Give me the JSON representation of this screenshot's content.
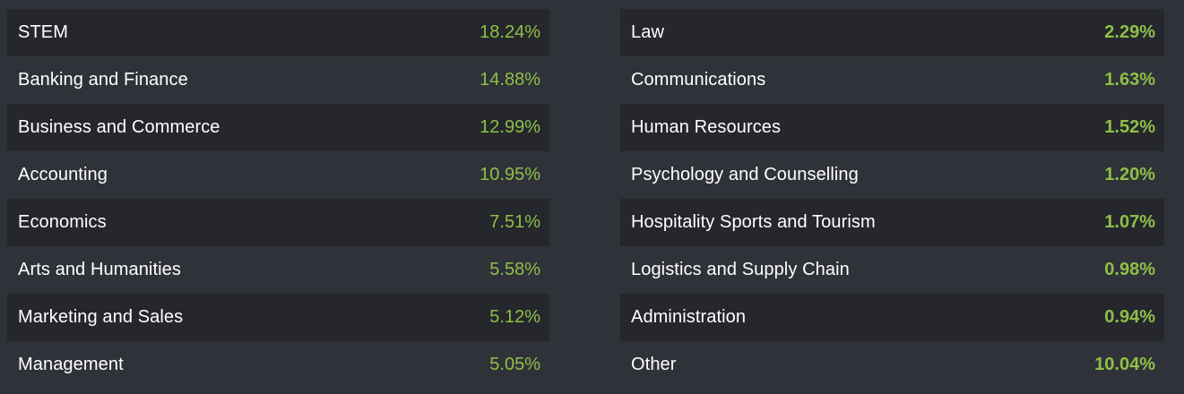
{
  "left_column": [
    {
      "label": "STEM",
      "value": "18.24%"
    },
    {
      "label": "Banking and Finance",
      "value": "14.88%"
    },
    {
      "label": "Business and Commerce",
      "value": "12.99%"
    },
    {
      "label": "Accounting",
      "value": "10.95%"
    },
    {
      "label": "Economics",
      "value": "7.51%"
    },
    {
      "label": "Arts and Humanities",
      "value": "5.58%"
    },
    {
      "label": "Marketing and Sales",
      "value": "5.12%"
    },
    {
      "label": "Management",
      "value": "5.05%"
    }
  ],
  "right_column": [
    {
      "label": "Law",
      "value": "2.29%"
    },
    {
      "label": "Communications",
      "value": "1.63%"
    },
    {
      "label": "Human Resources",
      "value": "1.52%"
    },
    {
      "label": "Psychology and Counselling",
      "value": "1.20%"
    },
    {
      "label": "Hospitality Sports and Tourism",
      "value": "1.07%"
    },
    {
      "label": "Logistics and Supply Chain",
      "value": "0.98%"
    },
    {
      "label": "Administration",
      "value": "0.94%"
    },
    {
      "label": "Other",
      "value": "10.04%"
    }
  ],
  "colors": {
    "background": "#2f3238",
    "row_shaded": "#25272c",
    "label_text": "#ffffff",
    "value_text": "#8fbf48"
  }
}
